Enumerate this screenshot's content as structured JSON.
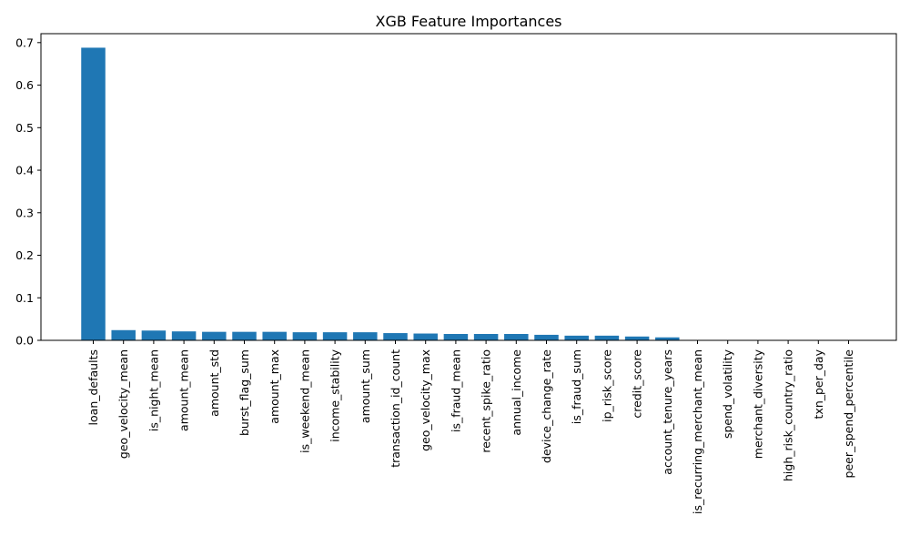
{
  "chart_data": {
    "type": "bar",
    "title": "XGB Feature Importances",
    "xlabel": "",
    "ylabel": "",
    "ylim": [
      0,
      0.721
    ],
    "yticks": [
      0.0,
      0.1,
      0.2,
      0.3,
      0.4,
      0.5,
      0.6,
      0.7
    ],
    "ytick_labels": [
      "0.0",
      "0.1",
      "0.2",
      "0.3",
      "0.4",
      "0.5",
      "0.6",
      "0.7"
    ],
    "grid": false,
    "bar_color": "#1f77b4",
    "categories": [
      "loan_defaults",
      "geo_velocity_mean",
      "is_night_mean",
      "amount_mean",
      "amount_std",
      "burst_flag_sum",
      "amount_max",
      "is_weekend_mean",
      "income_stability",
      "amount_sum",
      "transaction_id_count",
      "geo_velocity_max",
      "is_fraud_mean",
      "recent_spike_ratio",
      "annual_income",
      "device_change_rate",
      "is_fraud_sum",
      "ip_risk_score",
      "credit_score",
      "account_tenure_years",
      "is_recurring_merchant_mean",
      "spend_volatility",
      "merchant_diversity",
      "high_risk_country_ratio",
      "txn_per_day",
      "peer_spend_percentile"
    ],
    "values": [
      0.688,
      0.024,
      0.023,
      0.021,
      0.02,
      0.02,
      0.02,
      0.019,
      0.019,
      0.019,
      0.017,
      0.016,
      0.015,
      0.015,
      0.015,
      0.013,
      0.011,
      0.011,
      0.009,
      0.007,
      0.0,
      0.0,
      0.0,
      0.0,
      0.0,
      0.0
    ]
  }
}
